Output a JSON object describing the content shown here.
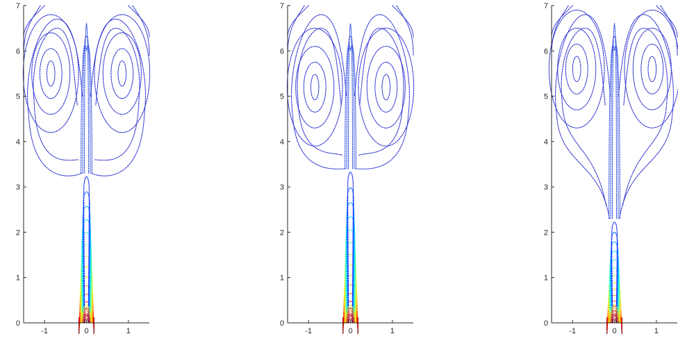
{
  "chart_data": [
    {
      "type": "contour",
      "title": "",
      "xlabel": "",
      "ylabel": "",
      "xlim": [
        -1.5,
        1.5
      ],
      "ylim": [
        0,
        7
      ],
      "xticks": [
        -1,
        0,
        1
      ],
      "xtick_labels": [
        "-1",
        "0",
        "1"
      ],
      "yticks": [
        0,
        1,
        2,
        3,
        4,
        5,
        6,
        7
      ],
      "ytick_labels": [
        "0",
        "1",
        "2",
        "3",
        "4",
        "5",
        "6",
        "7"
      ],
      "colormap": "jet",
      "line_style": "dotted",
      "features": {
        "jet_base_half_width": 0.18,
        "stem_top_y": 3.3,
        "mushroom_cap_bottom_y": 3.2,
        "vortex_centers": [
          [
            -0.85,
            5.5
          ],
          [
            0.85,
            5.5
          ]
        ],
        "cap_top_y": 6.7
      }
    },
    {
      "type": "contour",
      "title": "",
      "xlabel": "",
      "ylabel": "",
      "xlim": [
        -1.5,
        1.5
      ],
      "ylim": [
        0,
        7
      ],
      "xticks": [
        -1,
        0,
        1
      ],
      "xtick_labels": [
        "-1",
        "0",
        "1"
      ],
      "yticks": [
        0,
        1,
        2,
        3,
        4,
        5,
        6,
        7
      ],
      "ytick_labels": [
        "0",
        "1",
        "2",
        "3",
        "4",
        "5",
        "6",
        "7"
      ],
      "colormap": "jet",
      "line_style": "dotted",
      "features": {
        "jet_base_half_width": 0.18,
        "stem_top_y": 3.4,
        "mushroom_cap_bottom_y": 3.4,
        "vortex_centers": [
          [
            -0.85,
            5.2
          ],
          [
            0.85,
            5.2
          ]
        ],
        "cap_top_y": 6.8
      }
    },
    {
      "type": "contour",
      "title": "",
      "xlabel": "",
      "ylabel": "",
      "xlim": [
        -1.5,
        1.5
      ],
      "ylim": [
        0,
        7
      ],
      "xticks": [
        -1,
        0,
        1
      ],
      "xtick_labels": [
        "-1",
        "0",
        "1"
      ],
      "yticks": [
        0,
        1,
        2,
        3,
        4,
        5,
        6,
        7
      ],
      "ytick_labels": [
        "0",
        "1",
        "2",
        "3",
        "4",
        "5",
        "6",
        "7"
      ],
      "colormap": "jet",
      "line_style": "dotted",
      "features": {
        "jet_base_half_width": 0.18,
        "stem_top_y": 2.3,
        "mushroom_cap_bottom_y": 3.6,
        "vortex_centers": [
          [
            -0.9,
            5.6
          ],
          [
            0.9,
            5.6
          ]
        ],
        "cap_top_y": 6.8
      }
    }
  ]
}
